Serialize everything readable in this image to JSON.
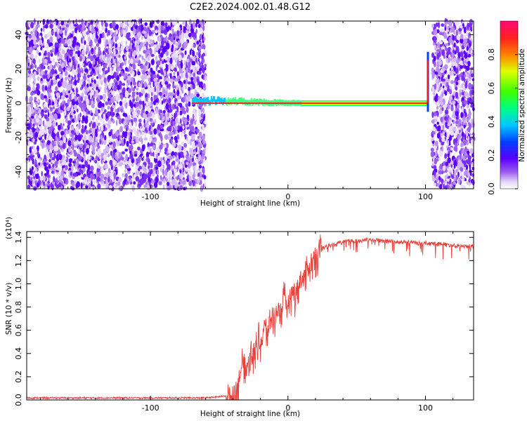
{
  "title": "C2E2.2024.002.01.48.G12",
  "chart_data": [
    {
      "type": "heatmap",
      "xlabel": "Height of straight line (km)",
      "ylabel": "Frequency (Hz)",
      "xlim": [
        -190,
        135
      ],
      "ylim": [
        -50,
        48
      ],
      "x_ticks": [
        -100,
        0,
        100
      ],
      "y_ticks": [
        -40,
        -20,
        0,
        20,
        40
      ],
      "colorbar": {
        "label": "Normalized spectral amplitude",
        "range": [
          0,
          1
        ],
        "ticks": [
          0.0,
          0.2,
          0.4,
          0.6,
          0.8
        ],
        "tick_labels": [
          "0.0",
          "0.2",
          "0.4",
          "0.6",
          "0.8"
        ]
      },
      "noise_regions": [
        [
          -190,
          -60
        ],
        [
          105,
          135
        ]
      ],
      "signal_line": {
        "x_range": [
          -70,
          102
        ],
        "frequency": 0
      },
      "grid": false
    },
    {
      "type": "line",
      "xlabel": "Height of straight line (km)",
      "ylabel": "SNR (10 * v/v)",
      "scale_label": "(x10⁴)",
      "xlim": [
        -190,
        135
      ],
      "ylim": [
        0,
        1.45
      ],
      "x_ticks": [
        -100,
        0,
        100
      ],
      "y_ticks": [
        0.0,
        0.2,
        0.4,
        0.6,
        0.8,
        1.0,
        1.2,
        1.4
      ],
      "y_tick_labels": [
        "0.0",
        "0.2",
        "0.4",
        "0.6",
        "0.8",
        "1.0",
        "1.2",
        "1.4"
      ],
      "color": "#e8403a",
      "series": [
        {
          "x": [
            -190,
            -150,
            -100,
            -60,
            -50,
            -45,
            -40,
            -37,
            -35,
            -32,
            -30,
            -27,
            -25,
            -22,
            -20,
            -17,
            -15,
            -12,
            -10,
            -8,
            -5,
            -3,
            0,
            3,
            5,
            8,
            10,
            13,
            15,
            18,
            20,
            23,
            25,
            30,
            35,
            40,
            50,
            60,
            70,
            80,
            90,
            100,
            110,
            120,
            135
          ],
          "y": [
            0.01,
            0.01,
            0.01,
            0.01,
            0.02,
            0.03,
            0.05,
            0.12,
            0.25,
            0.35,
            0.28,
            0.45,
            0.38,
            0.55,
            0.5,
            0.65,
            0.6,
            0.75,
            0.7,
            0.8,
            0.78,
            0.88,
            0.85,
            0.95,
            0.92,
            1.02,
            1.05,
            1.1,
            1.15,
            1.22,
            1.25,
            1.3,
            1.32,
            1.35,
            1.36,
            1.38,
            1.39,
            1.4,
            1.39,
            1.38,
            1.38,
            1.37,
            1.36,
            1.35,
            1.34
          ]
        }
      ]
    }
  ]
}
